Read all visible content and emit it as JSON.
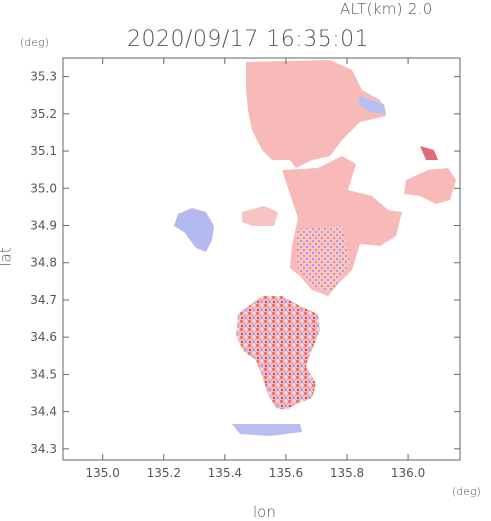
{
  "header": {
    "altitude": "ALT(km)  2.0",
    "timestamp": "2020/09/17 16:35:01"
  },
  "axes": {
    "y_unit": "(deg)",
    "x_unit": "(deg)",
    "ylabel": "lat",
    "xlabel": "lon"
  },
  "chart_data": {
    "type": "heatmap",
    "xlabel": "lon",
    "ylabel": "lat",
    "x_ticks": [
      "135.0",
      "135.2",
      "135.4",
      "135.6",
      "135.8",
      "136.0"
    ],
    "y_ticks": [
      "34.3",
      "34.4",
      "34.5",
      "34.6",
      "34.7",
      "34.8",
      "34.9",
      "35.0",
      "35.1",
      "35.2",
      "35.3"
    ],
    "xlim": [
      134.87,
      136.17
    ],
    "ylim": [
      34.27,
      35.35
    ],
    "colors": {
      "positive": "#f4a0a0",
      "negative": "#a8b0f0",
      "frame": "#666666"
    }
  }
}
